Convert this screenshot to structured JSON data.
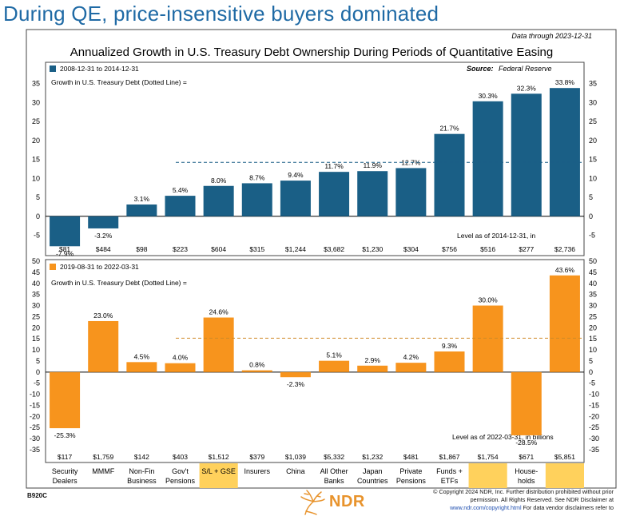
{
  "headline": "During QE, price-insensitive buyers dominated",
  "data_through": "Data  through  2023-12-31",
  "chart_title": "Annualized Growth in U.S. Treasury Debt Ownership During Periods of Quantitative Easing",
  "source_label": "Source:",
  "source_value": "Federal Reserve",
  "colors": {
    "top": "#1a5f86",
    "bottom": "#f7941d",
    "highlight": "#ffd15c"
  },
  "categories": [
    [
      "Security",
      "Dealers"
    ],
    [
      "MMMF"
    ],
    [
      "Non-Fin",
      "Business"
    ],
    [
      "Gov't",
      "Pensions"
    ],
    [
      "S/L + GSE"
    ],
    [
      "Insurers"
    ],
    [
      "China"
    ],
    [
      "All Other",
      "Banks"
    ],
    [
      "Japan",
      "Countries"
    ],
    [
      "Private",
      "Pensions"
    ],
    [
      "Funds +",
      "ETFs"
    ],
    [
      ""
    ],
    [
      "House-",
      "holds"
    ],
    [
      ""
    ]
  ],
  "highlight_categories": [
    4,
    11,
    13
  ],
  "chart_data": [
    {
      "type": "bar",
      "legend": "2008-12-31   to   2014-12-31",
      "dotted_note": "Growth  in U.S. Treasury Debt  (Dotted  Line)  =",
      "level_note": "Level as of  2014-12-31,   in",
      "ylim": [
        -7,
        37
      ],
      "yticks": [
        35,
        30,
        25,
        20,
        15,
        10,
        5,
        0,
        -5
      ],
      "reference_line": 14.2,
      "values": [
        -7.9,
        -3.2,
        3.1,
        5.4,
        8.0,
        8.7,
        9.4,
        11.7,
        11.9,
        12.7,
        21.7,
        30.3,
        32.3,
        33.8
      ],
      "labels": [
        "-7.9%",
        "-3.2%",
        "3.1%",
        "5.4%",
        "8.0%",
        "8.7%",
        "9.4%",
        "11.7%",
        "11.9%",
        "12.7%",
        "21.7%",
        "30.3%",
        "32.3%",
        "33.8%"
      ],
      "levels": [
        "$81",
        "$484",
        "$98",
        "$223",
        "$604",
        "$315",
        "$1,244",
        "$3,682",
        "$1,230",
        "$304",
        "$756",
        "$516",
        "$277",
        "$2,736"
      ],
      "grid": false
    },
    {
      "type": "bar",
      "legend": "2019-08-31   to   2022-03-31",
      "dotted_note": "Growth  in U.S. Treasury Debt  (Dotted  Line)  =",
      "level_note": "Level as of  2022-03-31,   in billions",
      "ylim": [
        -35,
        50
      ],
      "yticks": [
        50,
        45,
        40,
        35,
        30,
        25,
        20,
        15,
        10,
        5,
        0,
        -5,
        -10,
        -15,
        -20,
        -25,
        -30,
        -35
      ],
      "reference_line": 15.3,
      "values": [
        -25.3,
        23.0,
        4.5,
        4.0,
        24.6,
        0.8,
        -2.3,
        5.1,
        2.9,
        4.2,
        9.3,
        30.0,
        -28.5,
        43.6
      ],
      "labels": [
        "-25.3%",
        "23.0%",
        "4.5%",
        "4.0%",
        "24.6%",
        "0.8%",
        "-2.3%",
        "5.1%",
        "2.9%",
        "4.2%",
        "9.3%",
        "30.0%",
        "-28.5%",
        "43.6%"
      ],
      "levels": [
        "$117",
        "$1,759",
        "$142",
        "$403",
        "$1,512",
        "$379",
        "$1,039",
        "$5,332",
        "$1,232",
        "$481",
        "$1,867",
        "$1,754",
        "$671",
        "$5,851"
      ],
      "grid": false
    }
  ],
  "footer_code": "B920C",
  "logo_text": "NDR",
  "disclaimer_lines": [
    "© Copyright 2024  NDR, Inc. Further distribution prohibited without prior",
    "permission.   All Rights Reserved. See NDR Disclaimer at",
    "www.ndr.com/copyright.html  For data vendor disclaimers refer to"
  ],
  "disclaimer_link": "www.ndr.com/copyright.html"
}
